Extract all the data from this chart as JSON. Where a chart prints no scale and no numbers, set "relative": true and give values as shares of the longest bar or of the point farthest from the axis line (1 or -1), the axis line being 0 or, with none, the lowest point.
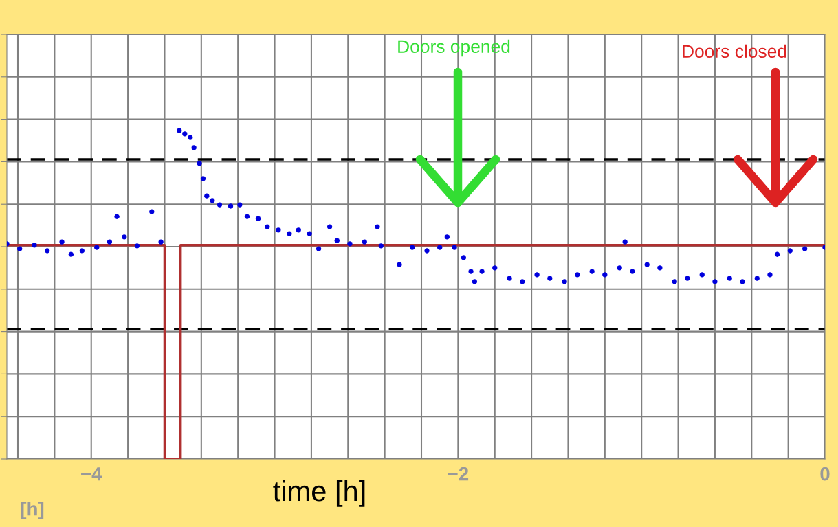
{
  "chart_data": {
    "type": "scatter",
    "relative": true,
    "xlabel": "time [h]",
    "x": [
      -4.46,
      -4.39,
      -4.31,
      -4.24,
      -4.16,
      -4.11,
      -4.05,
      -3.97,
      -3.9,
      -3.86,
      -3.82,
      -3.75,
      -3.67,
      -3.62,
      -3.52,
      -3.49,
      -3.46,
      -3.44,
      -3.41,
      -3.39,
      -3.37,
      -3.34,
      -3.3,
      -3.24,
      -3.19,
      -3.15,
      -3.09,
      -3.04,
      -2.98,
      -2.92,
      -2.87,
      -2.81,
      -2.76,
      -2.7,
      -2.66,
      -2.59,
      -2.51,
      -2.44,
      -2.42,
      -2.32,
      -2.25,
      -2.17,
      -2.1,
      -2.06,
      -2.02,
      -1.97,
      -1.93,
      -1.91,
      -1.87,
      -1.8,
      -1.72,
      -1.65,
      -1.57,
      -1.5,
      -1.42,
      -1.35,
      -1.27,
      -1.2,
      -1.12,
      -1.09,
      -1.05,
      -0.97,
      -0.9,
      -0.82,
      -0.75,
      -0.67,
      -0.6,
      -0.52,
      -0.45,
      -0.37,
      -0.3,
      -0.26,
      -0.19,
      -0.11,
      0
    ],
    "series": [
      {
        "color": "#0000dd",
        "values": [
          0.655,
          0.64,
          0.651,
          0.634,
          0.661,
          0.623,
          0.634,
          0.644,
          0.661,
          0.738,
          0.676,
          0.649,
          0.753,
          0.661,
          1,
          0.99,
          0.979,
          0.948,
          0.9,
          0.854,
          0.801,
          0.787,
          0.774,
          0.77,
          0.774,
          0.738,
          0.732,
          0.707,
          0.697,
          0.686,
          0.697,
          0.686,
          0.64,
          0.707,
          0.665,
          0.655,
          0.661,
          0.707,
          0.649,
          0.592,
          0.644,
          0.634,
          0.644,
          0.676,
          0.644,
          0.613,
          0.571,
          0.54,
          0.571,
          0.582,
          0.55,
          0.54,
          0.561,
          0.55,
          0.54,
          0.561,
          0.571,
          0.561,
          0.582,
          0.661,
          0.571,
          0.592,
          0.582,
          0.54,
          0.55,
          0.561,
          0.54,
          0.55,
          0.54,
          0.55,
          0.561,
          0.623,
          0.634,
          0.64,
          0.644
        ]
      },
      {
        "type": "line",
        "color": "#b03030",
        "marker": "none",
        "x": [
          -4.46,
          -3.6,
          -3.6,
          -3.513,
          -3.513,
          0
        ],
        "values": [
          0.651,
          0.651,
          0,
          0,
          0.651,
          0.651
        ]
      }
    ],
    "marker": "circle",
    "ref_lines": [
      {
        "axis": "y",
        "value": 0.912,
        "color": "#000000",
        "line_style": "dashed"
      },
      {
        "axis": "y",
        "value": 0.395,
        "color": "#000000",
        "line_style": "dashed"
      }
    ],
    "annotations": [
      "Doors opened",
      "Doors closed",
      "[h]"
    ],
    "xlim": [
      -4.46,
      0
    ],
    "xticks": [
      {
        "value": -4.4,
        "label": null
      },
      {
        "value": -4.2,
        "label": null
      },
      -4,
      {
        "value": -3.8,
        "label": null
      },
      {
        "value": -3.6,
        "label": null
      },
      {
        "value": -3.4,
        "label": null
      },
      {
        "value": -3.2,
        "label": null
      },
      {
        "value": -3.0,
        "label": null
      },
      {
        "value": -2.8,
        "label": null
      },
      {
        "value": -2.6,
        "label": null
      },
      {
        "value": -2.4,
        "label": null
      },
      {
        "value": -2.2,
        "label": null
      },
      -2,
      {
        "value": -1.8,
        "label": null
      },
      {
        "value": -1.6,
        "label": null
      },
      {
        "value": -1.4,
        "label": null
      },
      {
        "value": -1.2,
        "label": null
      },
      {
        "value": -1.0,
        "label": null
      },
      {
        "value": -0.8,
        "label": null
      },
      {
        "value": -0.6,
        "label": null
      },
      {
        "value": -0.4,
        "label": null
      },
      {
        "value": -0.2,
        "label": null
      },
      0
    ],
    "grid": true
  }
}
